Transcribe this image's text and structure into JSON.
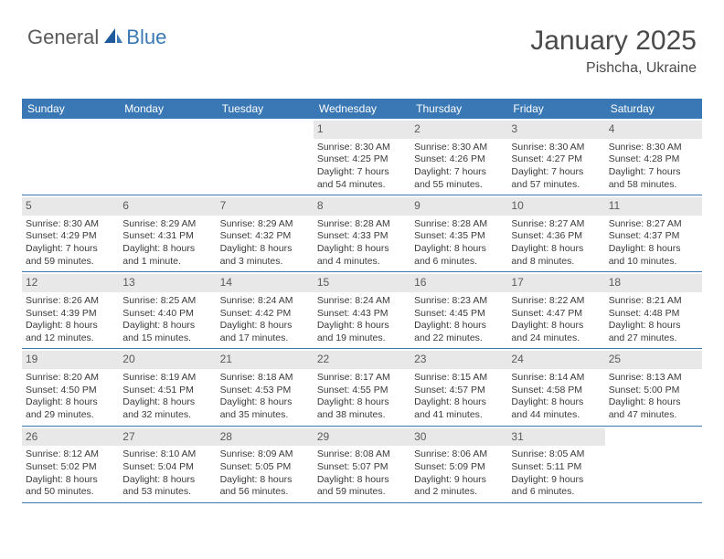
{
  "brand": {
    "part1": "General",
    "part2": "Blue"
  },
  "title": "January 2025",
  "location": "Pishcha, Ukraine",
  "colors": {
    "header_bg": "#3a78b5",
    "header_text": "#ffffff",
    "daynum_bg": "#e8e8e8",
    "text": "#3a3a3a",
    "border": "#3a78b5"
  },
  "day_headers": [
    "Sunday",
    "Monday",
    "Tuesday",
    "Wednesday",
    "Thursday",
    "Friday",
    "Saturday"
  ],
  "weeks": [
    [
      null,
      null,
      null,
      {
        "n": "1",
        "sr": "Sunrise: 8:30 AM",
        "ss": "Sunset: 4:25 PM",
        "dl": "Daylight: 7 hours and 54 minutes."
      },
      {
        "n": "2",
        "sr": "Sunrise: 8:30 AM",
        "ss": "Sunset: 4:26 PM",
        "dl": "Daylight: 7 hours and 55 minutes."
      },
      {
        "n": "3",
        "sr": "Sunrise: 8:30 AM",
        "ss": "Sunset: 4:27 PM",
        "dl": "Daylight: 7 hours and 57 minutes."
      },
      {
        "n": "4",
        "sr": "Sunrise: 8:30 AM",
        "ss": "Sunset: 4:28 PM",
        "dl": "Daylight: 7 hours and 58 minutes."
      }
    ],
    [
      {
        "n": "5",
        "sr": "Sunrise: 8:30 AM",
        "ss": "Sunset: 4:29 PM",
        "dl": "Daylight: 7 hours and 59 minutes."
      },
      {
        "n": "6",
        "sr": "Sunrise: 8:29 AM",
        "ss": "Sunset: 4:31 PM",
        "dl": "Daylight: 8 hours and 1 minute."
      },
      {
        "n": "7",
        "sr": "Sunrise: 8:29 AM",
        "ss": "Sunset: 4:32 PM",
        "dl": "Daylight: 8 hours and 3 minutes."
      },
      {
        "n": "8",
        "sr": "Sunrise: 8:28 AM",
        "ss": "Sunset: 4:33 PM",
        "dl": "Daylight: 8 hours and 4 minutes."
      },
      {
        "n": "9",
        "sr": "Sunrise: 8:28 AM",
        "ss": "Sunset: 4:35 PM",
        "dl": "Daylight: 8 hours and 6 minutes."
      },
      {
        "n": "10",
        "sr": "Sunrise: 8:27 AM",
        "ss": "Sunset: 4:36 PM",
        "dl": "Daylight: 8 hours and 8 minutes."
      },
      {
        "n": "11",
        "sr": "Sunrise: 8:27 AM",
        "ss": "Sunset: 4:37 PM",
        "dl": "Daylight: 8 hours and 10 minutes."
      }
    ],
    [
      {
        "n": "12",
        "sr": "Sunrise: 8:26 AM",
        "ss": "Sunset: 4:39 PM",
        "dl": "Daylight: 8 hours and 12 minutes."
      },
      {
        "n": "13",
        "sr": "Sunrise: 8:25 AM",
        "ss": "Sunset: 4:40 PM",
        "dl": "Daylight: 8 hours and 15 minutes."
      },
      {
        "n": "14",
        "sr": "Sunrise: 8:24 AM",
        "ss": "Sunset: 4:42 PM",
        "dl": "Daylight: 8 hours and 17 minutes."
      },
      {
        "n": "15",
        "sr": "Sunrise: 8:24 AM",
        "ss": "Sunset: 4:43 PM",
        "dl": "Daylight: 8 hours and 19 minutes."
      },
      {
        "n": "16",
        "sr": "Sunrise: 8:23 AM",
        "ss": "Sunset: 4:45 PM",
        "dl": "Daylight: 8 hours and 22 minutes."
      },
      {
        "n": "17",
        "sr": "Sunrise: 8:22 AM",
        "ss": "Sunset: 4:47 PM",
        "dl": "Daylight: 8 hours and 24 minutes."
      },
      {
        "n": "18",
        "sr": "Sunrise: 8:21 AM",
        "ss": "Sunset: 4:48 PM",
        "dl": "Daylight: 8 hours and 27 minutes."
      }
    ],
    [
      {
        "n": "19",
        "sr": "Sunrise: 8:20 AM",
        "ss": "Sunset: 4:50 PM",
        "dl": "Daylight: 8 hours and 29 minutes."
      },
      {
        "n": "20",
        "sr": "Sunrise: 8:19 AM",
        "ss": "Sunset: 4:51 PM",
        "dl": "Daylight: 8 hours and 32 minutes."
      },
      {
        "n": "21",
        "sr": "Sunrise: 8:18 AM",
        "ss": "Sunset: 4:53 PM",
        "dl": "Daylight: 8 hours and 35 minutes."
      },
      {
        "n": "22",
        "sr": "Sunrise: 8:17 AM",
        "ss": "Sunset: 4:55 PM",
        "dl": "Daylight: 8 hours and 38 minutes."
      },
      {
        "n": "23",
        "sr": "Sunrise: 8:15 AM",
        "ss": "Sunset: 4:57 PM",
        "dl": "Daylight: 8 hours and 41 minutes."
      },
      {
        "n": "24",
        "sr": "Sunrise: 8:14 AM",
        "ss": "Sunset: 4:58 PM",
        "dl": "Daylight: 8 hours and 44 minutes."
      },
      {
        "n": "25",
        "sr": "Sunrise: 8:13 AM",
        "ss": "Sunset: 5:00 PM",
        "dl": "Daylight: 8 hours and 47 minutes."
      }
    ],
    [
      {
        "n": "26",
        "sr": "Sunrise: 8:12 AM",
        "ss": "Sunset: 5:02 PM",
        "dl": "Daylight: 8 hours and 50 minutes."
      },
      {
        "n": "27",
        "sr": "Sunrise: 8:10 AM",
        "ss": "Sunset: 5:04 PM",
        "dl": "Daylight: 8 hours and 53 minutes."
      },
      {
        "n": "28",
        "sr": "Sunrise: 8:09 AM",
        "ss": "Sunset: 5:05 PM",
        "dl": "Daylight: 8 hours and 56 minutes."
      },
      {
        "n": "29",
        "sr": "Sunrise: 8:08 AM",
        "ss": "Sunset: 5:07 PM",
        "dl": "Daylight: 8 hours and 59 minutes."
      },
      {
        "n": "30",
        "sr": "Sunrise: 8:06 AM",
        "ss": "Sunset: 5:09 PM",
        "dl": "Daylight: 9 hours and 2 minutes."
      },
      {
        "n": "31",
        "sr": "Sunrise: 8:05 AM",
        "ss": "Sunset: 5:11 PM",
        "dl": "Daylight: 9 hours and 6 minutes."
      },
      null
    ]
  ]
}
